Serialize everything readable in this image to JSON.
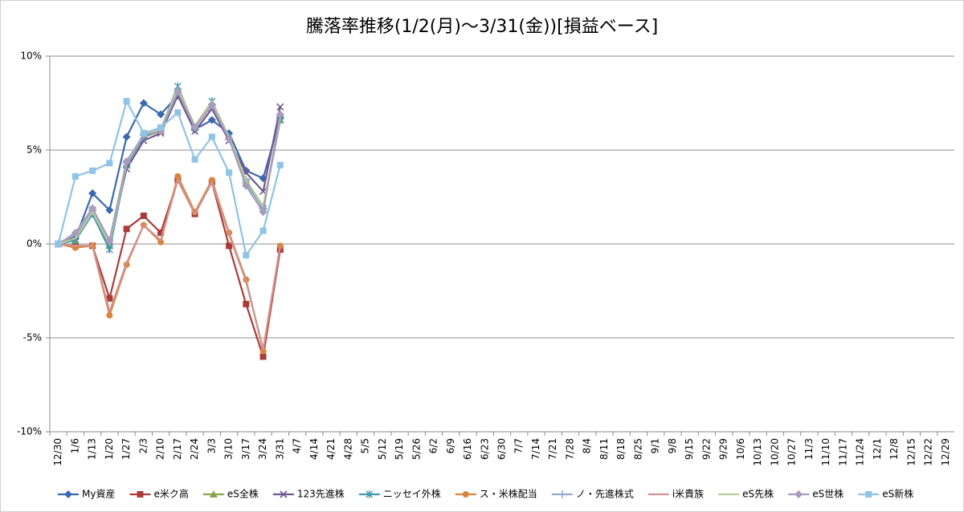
{
  "chart_data": {
    "type": "line",
    "title": "騰落率推移(1/2(月)～3/31(金))[損益ベース]",
    "categories": [
      "12/30",
      "1/6",
      "1/13",
      "1/20",
      "1/27",
      "2/3",
      "2/10",
      "2/17",
      "2/24",
      "3/3",
      "3/10",
      "3/17",
      "3/24",
      "3/31",
      "4/7",
      "4/14",
      "4/21",
      "4/28",
      "5/5",
      "5/12",
      "5/19",
      "5/26",
      "6/2",
      "6/9",
      "6/16",
      "6/23",
      "6/30",
      "7/7",
      "7/14",
      "7/21",
      "7/28",
      "8/4",
      "8/11",
      "8/18",
      "8/25",
      "9/1",
      "9/8",
      "9/15",
      "9/22",
      "9/29",
      "10/6",
      "10/13",
      "10/20",
      "10/27",
      "11/3",
      "11/10",
      "11/17",
      "11/24",
      "12/1",
      "12/8",
      "12/15",
      "12/22",
      "12/29"
    ],
    "ylim": [
      -10,
      10
    ],
    "yticks": [
      {
        "value": -10,
        "label": "-10%"
      },
      {
        "value": -5,
        "label": "-5%"
      },
      {
        "value": 0,
        "label": "0%"
      },
      {
        "value": 5,
        "label": "5%"
      },
      {
        "value": 10,
        "label": "10%"
      }
    ],
    "grid": true,
    "legend": "bottom",
    "series": [
      {
        "name": "My資産",
        "color": "#3a6aad",
        "marker": "diamond",
        "values": [
          0,
          0.3,
          2.7,
          1.8,
          5.7,
          7.5,
          6.9,
          7.9,
          6.1,
          6.6,
          5.9,
          3.9,
          3.5,
          6.7,
          null,
          null,
          null,
          null,
          null,
          null,
          null,
          null,
          null,
          null,
          null,
          null,
          null,
          null,
          null,
          null,
          null,
          null,
          null,
          null,
          null,
          null,
          null,
          null,
          null,
          null,
          null,
          null,
          null,
          null,
          null,
          null,
          null,
          null,
          null,
          null,
          null,
          null,
          null
        ]
      },
      {
        "name": "e米ク高",
        "color": "#aa3b38",
        "marker": "square",
        "values": [
          0,
          -0.1,
          -0.1,
          -2.9,
          0.8,
          1.5,
          0.6,
          3.4,
          1.6,
          3.3,
          -0.1,
          -3.2,
          -6.0,
          -0.3,
          null,
          null,
          null,
          null,
          null,
          null,
          null,
          null,
          null,
          null,
          null,
          null,
          null,
          null,
          null,
          null,
          null,
          null,
          null,
          null,
          null,
          null,
          null,
          null,
          null,
          null,
          null,
          null,
          null,
          null,
          null,
          null,
          null,
          null,
          null,
          null,
          null,
          null,
          null
        ]
      },
      {
        "name": "eS全株",
        "color": "#89a54e",
        "marker": "triangle",
        "values": [
          0,
          0.2,
          1.6,
          -0.1,
          4.2,
          5.7,
          6.0,
          8.2,
          6.2,
          7.5,
          5.7,
          3.4,
          2.0,
          6.6,
          null,
          null,
          null,
          null,
          null,
          null,
          null,
          null,
          null,
          null,
          null,
          null,
          null,
          null,
          null,
          null,
          null,
          null,
          null,
          null,
          null,
          null,
          null,
          null,
          null,
          null,
          null,
          null,
          null,
          null,
          null,
          null,
          null,
          null,
          null,
          null,
          null,
          null,
          null
        ]
      },
      {
        "name": "123先進株",
        "color": "#71588f",
        "marker": "x",
        "values": [
          0,
          0.4,
          1.8,
          0.1,
          4.0,
          5.5,
          5.9,
          7.9,
          6.0,
          7.2,
          5.5,
          3.8,
          2.8,
          7.3,
          null,
          null,
          null,
          null,
          null,
          null,
          null,
          null,
          null,
          null,
          null,
          null,
          null,
          null,
          null,
          null,
          null,
          null,
          null,
          null,
          null,
          null,
          null,
          null,
          null,
          null,
          null,
          null,
          null,
          null,
          null,
          null,
          null,
          null,
          null,
          null,
          null,
          null,
          null
        ]
      },
      {
        "name": "ニッセイ外株",
        "color": "#4198af",
        "marker": "star",
        "values": [
          0,
          0.2,
          1.6,
          -0.3,
          4.2,
          5.7,
          6.1,
          8.4,
          6.2,
          7.6,
          5.7,
          3.3,
          1.9,
          6.6,
          null,
          null,
          null,
          null,
          null,
          null,
          null,
          null,
          null,
          null,
          null,
          null,
          null,
          null,
          null,
          null,
          null,
          null,
          null,
          null,
          null,
          null,
          null,
          null,
          null,
          null,
          null,
          null,
          null,
          null,
          null,
          null,
          null,
          null,
          null,
          null,
          null,
          null,
          null
        ]
      },
      {
        "name": "ス・米株配当",
        "color": "#db843d",
        "marker": "circle",
        "values": [
          0,
          -0.2,
          -0.1,
          -3.8,
          -1.1,
          1.0,
          0.1,
          3.6,
          1.7,
          3.4,
          0.6,
          -1.9,
          -5.7,
          -0.1,
          null,
          null,
          null,
          null,
          null,
          null,
          null,
          null,
          null,
          null,
          null,
          null,
          null,
          null,
          null,
          null,
          null,
          null,
          null,
          null,
          null,
          null,
          null,
          null,
          null,
          null,
          null,
          null,
          null,
          null,
          null,
          null,
          null,
          null,
          null,
          null,
          null,
          null,
          null
        ]
      },
      {
        "name": "ノ・先進株式",
        "color": "#93a9cf",
        "marker": "plus",
        "values": [
          0,
          0.5,
          1.8,
          0.1,
          4.3,
          5.8,
          6.1,
          8.2,
          6.2,
          7.4,
          5.6,
          3.4,
          1.9,
          6.8,
          null,
          null,
          null,
          null,
          null,
          null,
          null,
          null,
          null,
          null,
          null,
          null,
          null,
          null,
          null,
          null,
          null,
          null,
          null,
          null,
          null,
          null,
          null,
          null,
          null,
          null,
          null,
          null,
          null,
          null,
          null,
          null,
          null,
          null,
          null,
          null,
          null,
          null,
          null
        ]
      },
      {
        "name": "i米貴族",
        "color": "#d19392",
        "marker": "none",
        "values": [
          0,
          -0.1,
          -0.1,
          -3.6,
          -1.0,
          1.0,
          0.2,
          3.4,
          1.6,
          3.3,
          0.5,
          -2.0,
          -5.6,
          -0.1,
          null,
          null,
          null,
          null,
          null,
          null,
          null,
          null,
          null,
          null,
          null,
          null,
          null,
          null,
          null,
          null,
          null,
          null,
          null,
          null,
          null,
          null,
          null,
          null,
          null,
          null,
          null,
          null,
          null,
          null,
          null,
          null,
          null,
          null,
          null,
          null,
          null,
          null,
          null
        ]
      },
      {
        "name": "eS先株",
        "color": "#b9cd96",
        "marker": "none",
        "values": [
          0,
          0.3,
          1.7,
          0.0,
          4.3,
          5.8,
          6.1,
          8.3,
          6.3,
          7.6,
          5.7,
          3.4,
          2.0,
          6.7,
          null,
          null,
          null,
          null,
          null,
          null,
          null,
          null,
          null,
          null,
          null,
          null,
          null,
          null,
          null,
          null,
          null,
          null,
          null,
          null,
          null,
          null,
          null,
          null,
          null,
          null,
          null,
          null,
          null,
          null,
          null,
          null,
          null,
          null,
          null,
          null,
          null,
          null,
          null
        ]
      },
      {
        "name": "eS世株",
        "color": "#a99bbd",
        "marker": "diamond",
        "values": [
          0,
          0.6,
          1.9,
          0.2,
          4.4,
          5.8,
          6.0,
          8.1,
          6.2,
          7.4,
          5.6,
          3.1,
          1.7,
          6.9,
          null,
          null,
          null,
          null,
          null,
          null,
          null,
          null,
          null,
          null,
          null,
          null,
          null,
          null,
          null,
          null,
          null,
          null,
          null,
          null,
          null,
          null,
          null,
          null,
          null,
          null,
          null,
          null,
          null,
          null,
          null,
          null,
          null,
          null,
          null,
          null,
          null,
          null,
          null
        ]
      },
      {
        "name": "eS新株",
        "color": "#8ec4e4",
        "marker": "square",
        "values": [
          0,
          3.6,
          3.9,
          4.3,
          7.6,
          5.9,
          6.2,
          7.0,
          4.5,
          5.7,
          3.8,
          -0.6,
          0.7,
          4.2,
          null,
          null,
          null,
          null,
          null,
          null,
          null,
          null,
          null,
          null,
          null,
          null,
          null,
          null,
          null,
          null,
          null,
          null,
          null,
          null,
          null,
          null,
          null,
          null,
          null,
          null,
          null,
          null,
          null,
          null,
          null,
          null,
          null,
          null,
          null,
          null,
          null,
          null,
          null
        ]
      }
    ]
  }
}
